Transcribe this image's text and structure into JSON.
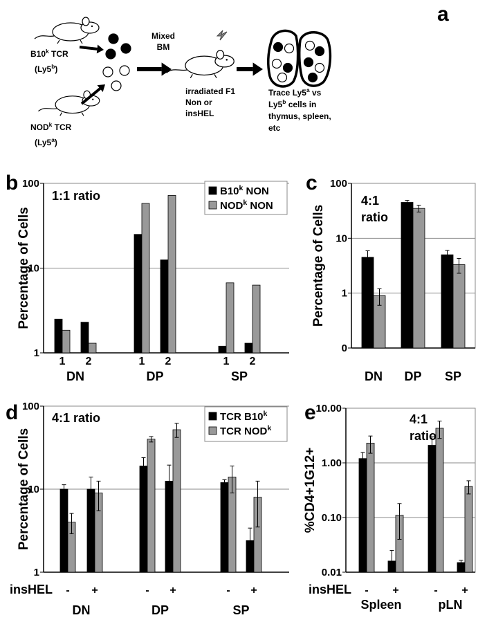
{
  "diagram": {
    "label": "a",
    "donor1": [
      "B10",
      "k",
      " TCR"
    ],
    "donor1_ly5": [
      "(Ly5",
      "b",
      ")"
    ],
    "donor2": [
      "NOD",
      "k",
      " TCR"
    ],
    "donor2_ly5": [
      "(Ly5",
      "a",
      ")"
    ],
    "mixed": [
      "Mixed",
      "BM"
    ],
    "recipient": [
      "irradiated F1",
      "Non or",
      "insHEL"
    ],
    "trace": [
      [
        "Trace Ly5",
        "a",
        " vs"
      ],
      [
        "Ly5",
        "b",
        " cells in"
      ],
      [
        "thymus, spleen,"
      ],
      [
        "etc"
      ]
    ]
  },
  "chart_data": [
    {
      "type": "bar",
      "panel": "b",
      "annotation": [
        "1:1 ratio"
      ],
      "ylabel": "Percentage of Cells",
      "log": true,
      "ylim": [
        1,
        100
      ],
      "yticks": [
        1,
        10,
        100
      ],
      "grid": true,
      "legend": "top-right",
      "categories": [
        "1",
        "2",
        "1",
        "2",
        "1",
        "2"
      ],
      "groups": [
        "DN",
        "DP",
        "SP"
      ],
      "series": [
        {
          "name": [
            "B10",
            "k",
            " NON"
          ],
          "color": "#000000",
          "values": [
            2.5,
            2.3,
            25,
            12.5,
            1.2,
            1.3
          ]
        },
        {
          "name": [
            "NOD",
            "k",
            " NON"
          ],
          "color": "#999999",
          "values": [
            1.85,
            1.3,
            58,
            72,
            6.7,
            6.3
          ]
        }
      ]
    },
    {
      "type": "bar",
      "panel": "c",
      "annotation": [
        "4:1",
        "ratio"
      ],
      "ylabel": "Percentage of Cells",
      "log": true,
      "ylim": [
        0.1,
        100
      ],
      "yticks": [
        {
          "value": 0.1,
          "label": "0"
        },
        1,
        10,
        100
      ],
      "grid": true,
      "categories": [
        "DN",
        "DP",
        "SP"
      ],
      "series": [
        {
          "color": "#000000",
          "values": [
            4.5,
            45,
            5
          ],
          "errors": [
            1.4,
            4,
            1
          ]
        },
        {
          "color": "#999999",
          "values": [
            0.9,
            35,
            3.3
          ],
          "errors": [
            0.3,
            5,
            1
          ]
        }
      ]
    },
    {
      "type": "bar",
      "panel": "d",
      "annotation": [
        "4:1 ratio"
      ],
      "ylabel": "Percentage of Cells",
      "log": true,
      "ylim": [
        1,
        100
      ],
      "yticks": [
        1,
        10,
        100
      ],
      "grid": true,
      "legend": "top-right",
      "category_label": "insHEL",
      "categories": [
        "-",
        "+",
        "-",
        "+",
        "-",
        "+"
      ],
      "groups": [
        "DN",
        "DP",
        "SP"
      ],
      "series": [
        {
          "name": [
            "TCR B10",
            "k"
          ],
          "color": "#000000",
          "values": [
            10,
            10,
            19,
            12.5,
            12,
            2.4
          ],
          "errors": [
            1.3,
            4,
            5,
            7,
            1,
            1
          ]
        },
        {
          "name": [
            "TCR NOD",
            "k"
          ],
          "color": "#999999",
          "values": [
            4,
            9,
            40,
            52,
            14,
            8
          ],
          "errors": [
            1.1,
            3.5,
            3,
            10,
            5,
            4.5
          ]
        }
      ]
    },
    {
      "type": "bar",
      "panel": "e",
      "annotation": [
        "4:1",
        "ratio"
      ],
      "ylabel": "%CD4+1G12+",
      "log": true,
      "ylim": [
        0.01,
        10
      ],
      "yticks": [
        {
          "value": 0.01,
          "label": "0.01"
        },
        {
          "value": 0.1,
          "label": "0.10"
        },
        {
          "value": 1,
          "label": "1.00"
        },
        {
          "value": 10,
          "label": "10.00"
        }
      ],
      "grid": true,
      "category_label": "insHEL",
      "categories": [
        "-",
        "+",
        "-",
        "+"
      ],
      "groups": [
        "Spleen",
        "pLN"
      ],
      "series": [
        {
          "color": "#000000",
          "values": [
            1.2,
            0.016,
            2.1,
            0.015
          ],
          "errors": [
            0.35,
            0.009,
            0.9,
            0.0015
          ]
        },
        {
          "color": "#999999",
          "values": [
            2.3,
            0.11,
            4.3,
            0.37
          ],
          "errors": [
            0.8,
            0.07,
            1.5,
            0.1
          ]
        }
      ]
    }
  ]
}
